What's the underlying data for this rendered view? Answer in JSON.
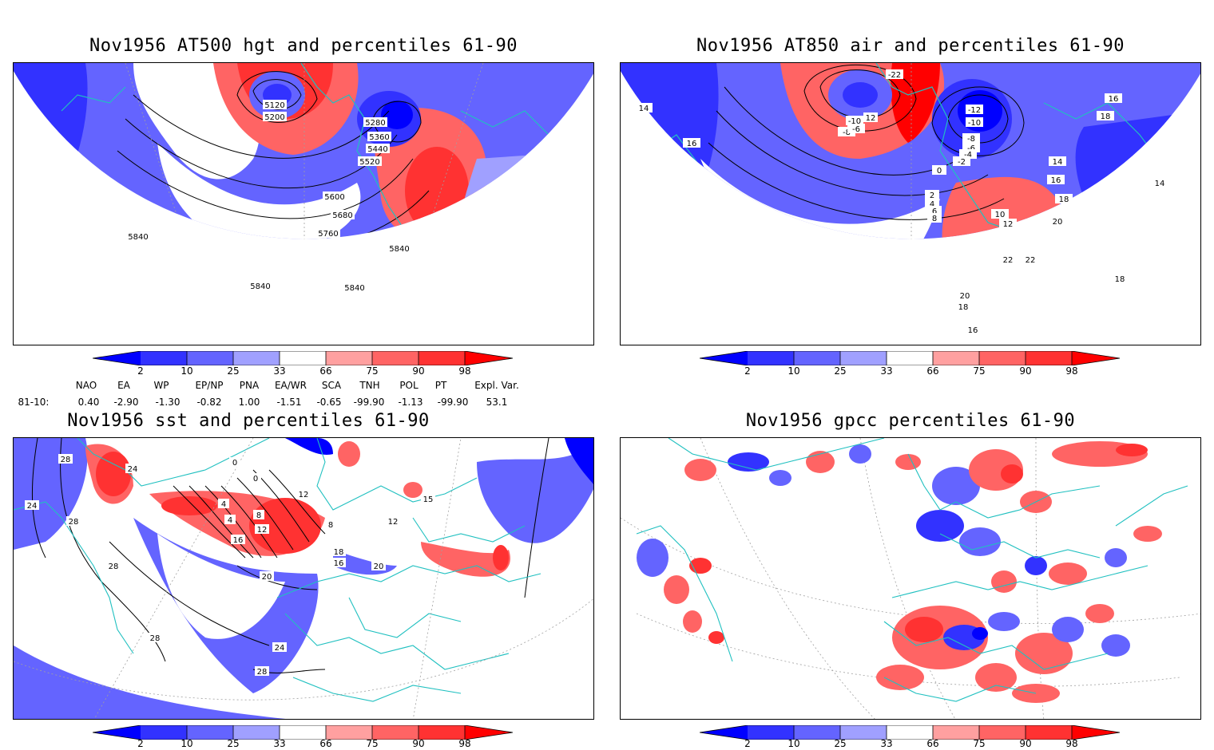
{
  "panels": {
    "p1": {
      "title": "Nov1956 AT500 hgt and percentiles 61-90",
      "contour_labels": [
        "5120",
        "5200",
        "5280",
        "5360",
        "5440",
        "5520",
        "5600",
        "5680",
        "5760",
        "5840",
        "5840",
        "5840",
        "5840"
      ]
    },
    "p2": {
      "title": "Nov1956 AT850 air and percentiles 61-90",
      "contour_labels": [
        "-22",
        "-12",
        "-10",
        "-8",
        "-6",
        "-4",
        "-2",
        "0",
        "2",
        "4",
        "6",
        "8",
        "10",
        "12",
        "14",
        "16",
        "18",
        "20",
        "22",
        "14",
        "16",
        "16",
        "18",
        "14",
        "22",
        "18",
        "20",
        "18",
        "16",
        "-10",
        "12",
        "-8",
        "-6"
      ]
    },
    "p3": {
      "title": "Nov1956 sst and percentiles 61-90",
      "contour_labels": [
        "28",
        "24",
        "24",
        "28",
        "28",
        "0",
        "0",
        "4",
        "4",
        "8",
        "12",
        "16",
        "20",
        "24",
        "28",
        "28",
        "16",
        "12",
        "8",
        "20",
        "18",
        "15",
        "12"
      ]
    },
    "p4": {
      "title": "Nov1956 gpcc percentiles 61-90",
      "contour_labels": []
    }
  },
  "colorbar": {
    "labels": [
      "2",
      "10",
      "25",
      "33",
      "66",
      "75",
      "90",
      "98"
    ],
    "colors": {
      "below2": "#0000ff",
      "b2_10": "#3232ff",
      "b10_25": "#6464ff",
      "b25_33": "#a0a0ff",
      "neutral": "#ffffff",
      "a66_75": "#ffa0a0",
      "a75_90": "#ff6464",
      "a90_98": "#ff3232",
      "above98": "#ff0000"
    }
  },
  "indices": {
    "headers": [
      "NAO",
      "EA",
      "WP",
      "EP/NP",
      "PNA",
      "EA/WR",
      "SCA",
      "TNH",
      "POL",
      "PT",
      "Expl. Var."
    ],
    "row_label": "81-10:",
    "values": [
      "0.40",
      "-2.90",
      "-1.30",
      "-0.82",
      "1.00",
      "-1.51",
      "-0.65",
      "-99.90",
      "-1.13",
      "-99.90",
      "53.1"
    ]
  },
  "map_colors": {
    "coast": "#20c0c0",
    "contour": "#000000",
    "grid": "#a0a0a0"
  }
}
